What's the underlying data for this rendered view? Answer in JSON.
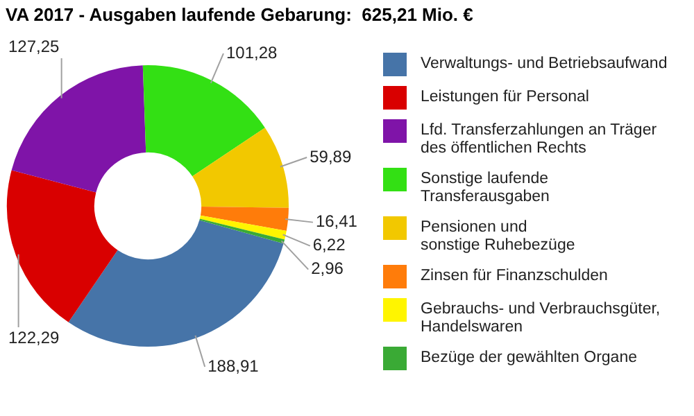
{
  "chart_data": {
    "type": "donut",
    "title": "VA 2017 - Ausgaben laufende Gebarung:  625,21 Mio. €",
    "categories": [
      "Verwaltungs- und Betriebsaufwand",
      "Leistungen für Personal",
      "Lfd. Transferzahlungen an Träger\ndes öffentlichen Rechts",
      "Sonstige laufende\nTransferausgaben",
      "Pensionen und\nsonstige Ruhebezüge",
      "Zinsen für Finanzschulden",
      "Gebrauchs- und Verbrauchsgüter,\nHandelswaren",
      "Bezüge der gewählten Organe"
    ],
    "values": [
      188.91,
      122.29,
      127.25,
      101.28,
      59.89,
      16.41,
      6.22,
      2.96
    ],
    "colors": [
      "#4674a8",
      "#d90000",
      "#7f14a8",
      "#33e014",
      "#f2c800",
      "#ff7c0a",
      "#fff500",
      "#3aaa35"
    ],
    "value_labels": [
      "188,91",
      "122,29",
      "127,25",
      "101,28",
      "59,89",
      "16,41",
      "6,22",
      "2,96"
    ],
    "legend": "right"
  }
}
